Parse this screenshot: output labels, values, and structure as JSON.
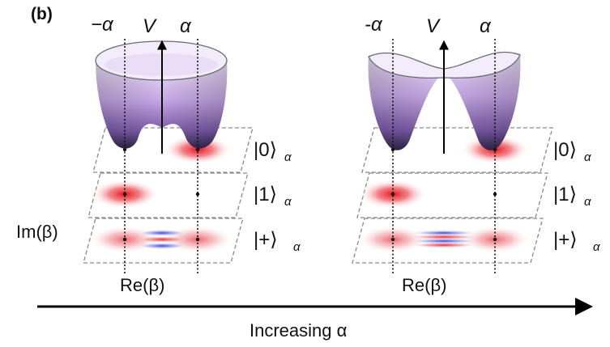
{
  "panel_label": "(b)",
  "left": {
    "minus_alpha": "−α",
    "potential": "V",
    "plus_alpha": "α",
    "states": [
      {
        "ket": "|0⟩",
        "subscript": "α"
      },
      {
        "ket": "|1⟩",
        "subscript": "α"
      },
      {
        "ket": "|+⟩",
        "subscript": "α"
      }
    ],
    "im_axis": "Im(β)",
    "re_axis": "Re(β)"
  },
  "right": {
    "minus_alpha": "-α",
    "potential": "V",
    "plus_alpha": "α",
    "states": [
      {
        "ket": "|0⟩",
        "subscript": "α"
      },
      {
        "ket": "|1⟩",
        "subscript": "α"
      },
      {
        "ket": "|+⟩",
        "subscript": "α"
      }
    ],
    "re_axis": "Re(β)"
  },
  "increasing_label": "Increasing α",
  "colors": {
    "surface_top": "#ece0f8",
    "surface_bottom": "#3a2a5a",
    "wigner_positive": "#e8202a",
    "wigner_negative": "#3040d8"
  }
}
